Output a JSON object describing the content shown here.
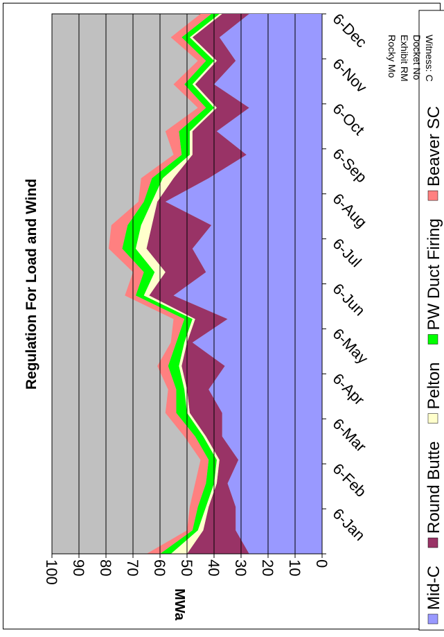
{
  "chart_data": {
    "type": "area",
    "stacked": true,
    "title": "Regulation For Load and Wind",
    "ylabel": "MWa",
    "xlabel": "",
    "ylim": [
      0,
      100
    ],
    "yticks": [
      0,
      10,
      20,
      30,
      40,
      50,
      60,
      70,
      80,
      90,
      100
    ],
    "grid": true,
    "legend_position": "bottom",
    "categories": [
      "6-Jan",
      "6-Feb",
      "6-Mar",
      "6-Apr",
      "6-May",
      "6-Jun",
      "6-Jul",
      "6-Aug",
      "6-Sep",
      "6-Oct",
      "6-Nov",
      "6-Dec"
    ],
    "x_tick_labels": [
      "6-Jan",
      "6-Feb",
      "6-Mar",
      "6-Apr",
      "6-May",
      "6-Jun",
      "6-Jul",
      "6-Aug",
      "6-Sep",
      "6-Oct",
      "6-Nov",
      "6-Dec"
    ],
    "x": [
      "6-Jan",
      "",
      "6-Feb",
      "",
      "6-Mar",
      "",
      "6-Apr",
      "",
      "6-May",
      "",
      "6-Jun",
      "",
      "6-Jul",
      "",
      "6-Aug",
      "",
      "6-Sep",
      "",
      "6-Oct",
      "",
      "6-Nov",
      "",
      "6-Dec",
      ""
    ],
    "series": [
      {
        "name": "Mid-C",
        "color": "#9999ff",
        "values": [
          27,
          32,
          32,
          35,
          31,
          37,
          37,
          42,
          36,
          48,
          35,
          55,
          43,
          48,
          41,
          58,
          42,
          28,
          39,
          27,
          40,
          32,
          38,
          27
        ]
      },
      {
        "name": "Round Butte",
        "color": "#993366",
        "values": [
          23,
          12,
          10,
          4,
          7,
          6,
          12,
          8,
          16,
          2,
          12,
          9,
          15,
          17,
          22,
          3,
          13,
          20,
          9,
          12,
          7,
          7,
          10,
          10
        ]
      },
      {
        "name": "Pelton",
        "color": "#ffffcc",
        "values": [
          6,
          2,
          1,
          1,
          1,
          1,
          1,
          1,
          1,
          1,
          1,
          2,
          4,
          4,
          4,
          2,
          4,
          1,
          1,
          1,
          1,
          1,
          1,
          1
        ]
      },
      {
        "name": "PW Duct Firing",
        "color": "#00ff00",
        "values": [
          4,
          2,
          3,
          3,
          3,
          3,
          4,
          3,
          4,
          3,
          3,
          3,
          4,
          5,
          5,
          3,
          4,
          3,
          4,
          3,
          3,
          3,
          3,
          3
        ]
      },
      {
        "name": "Beaver SC",
        "color": "#ff8080",
        "values": [
          5,
          2,
          3,
          4,
          3,
          4,
          4,
          3,
          4,
          2,
          4,
          4,
          4,
          5,
          6,
          2,
          4,
          3,
          5,
          3,
          4,
          3,
          4,
          4
        ]
      }
    ]
  },
  "legend": {
    "items": [
      "Mid-C",
      "Round Butte",
      "Pelton",
      "PW Duct Firing",
      "Beaver SC"
    ]
  },
  "stamp": {
    "line1": "Rocky Mo",
    "line2": "Exhibit RM",
    "line3": "Docket No",
    "line4": "Witness: C"
  }
}
